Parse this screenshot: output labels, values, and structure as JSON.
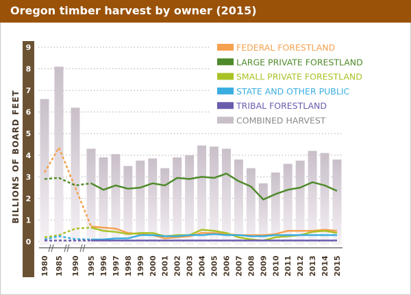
{
  "chart_data": {
    "type": "bar+line",
    "title": "Oregon timber harvest by owner (2015)",
    "ylabel": "BILLIONS OF BOARD FEET",
    "xlabel": "",
    "ylim": [
      0,
      9
    ],
    "yticks": [
      "0",
      "1",
      "2",
      "3",
      "4",
      "5",
      "6",
      "7",
      "8",
      "9"
    ],
    "grid": true,
    "legend_position": "top-right",
    "categories": [
      "1980",
      "1985",
      "1990",
      "1995",
      "1996",
      "1997",
      "1998",
      "1999",
      "2000",
      "2001",
      "2002",
      "2003",
      "2004",
      "2005",
      "2006",
      "2007",
      "2008",
      "2009",
      "2010",
      "2011",
      "2012",
      "2013",
      "2014",
      "2015"
    ],
    "bars": {
      "name": "COMBINED HARVEST",
      "color": "#c9bfc9",
      "values": [
        6.6,
        8.1,
        6.2,
        4.3,
        3.9,
        4.05,
        3.5,
        3.75,
        3.85,
        3.4,
        3.9,
        4.0,
        4.45,
        4.4,
        4.3,
        3.8,
        3.4,
        2.7,
        3.2,
        3.6,
        3.75,
        4.2,
        4.1,
        3.8
      ]
    },
    "series": [
      {
        "name": "FEDERAL FORESTLAND",
        "color": "#f5a14f",
        "values": [
          3.2,
          4.35,
          2.5,
          0.7,
          0.65,
          0.6,
          0.4,
          0.35,
          0.3,
          0.15,
          0.2,
          0.25,
          0.4,
          0.4,
          0.35,
          0.3,
          0.3,
          0.3,
          0.35,
          0.5,
          0.5,
          0.5,
          0.55,
          0.5
        ]
      },
      {
        "name": "LARGE PRIVATE FORESTLAND",
        "color": "#4e8a2a",
        "values": [
          2.9,
          2.95,
          2.6,
          2.7,
          2.4,
          2.6,
          2.45,
          2.5,
          2.7,
          2.6,
          2.95,
          2.9,
          3.0,
          2.95,
          3.15,
          2.8,
          2.55,
          1.95,
          2.2,
          2.4,
          2.5,
          2.75,
          2.6,
          2.35
        ]
      },
      {
        "name": "SMALL PRIVATE FORESTLAND",
        "color": "#a9c226",
        "values": [
          0.2,
          0.3,
          0.6,
          0.65,
          0.5,
          0.45,
          0.35,
          0.4,
          0.4,
          0.25,
          0.3,
          0.3,
          0.55,
          0.5,
          0.4,
          0.2,
          0.1,
          0.05,
          0.2,
          0.25,
          0.3,
          0.45,
          0.5,
          0.4
        ]
      },
      {
        "name": "STATE AND OTHER PUBLIC",
        "color": "#3aaee0",
        "values": [
          0.1,
          0.25,
          0.12,
          0.1,
          0.1,
          0.15,
          0.15,
          0.3,
          0.3,
          0.25,
          0.25,
          0.3,
          0.3,
          0.35,
          0.3,
          0.3,
          0.25,
          0.25,
          0.3,
          0.3,
          0.3,
          0.3,
          0.3,
          0.3
        ]
      },
      {
        "name": "TRIBAL FORESTLAND",
        "color": "#6a5cad",
        "values": [
          0.05,
          0.05,
          0.05,
          0.05,
          0.05,
          0.05,
          0.05,
          0.05,
          0.05,
          0.05,
          0.05,
          0.05,
          0.05,
          0.05,
          0.05,
          0.05,
          0.05,
          0.05,
          0.05,
          0.05,
          0.05,
          0.05,
          0.05,
          0.05
        ]
      }
    ],
    "legend": [
      "FEDERAL FORESTLAND",
      "LARGE PRIVATE FORESTLAND",
      "SMALL PRIVATE FORESTLAND",
      "STATE AND OTHER PUBLIC",
      "TRIBAL FORESTLAND",
      "COMBINED HARVEST"
    ],
    "dashed_through": "1995",
    "axis_breaks": true,
    "colors": {
      "title_bar": "#9a5209",
      "axis_bar": "#6b5233"
    }
  }
}
